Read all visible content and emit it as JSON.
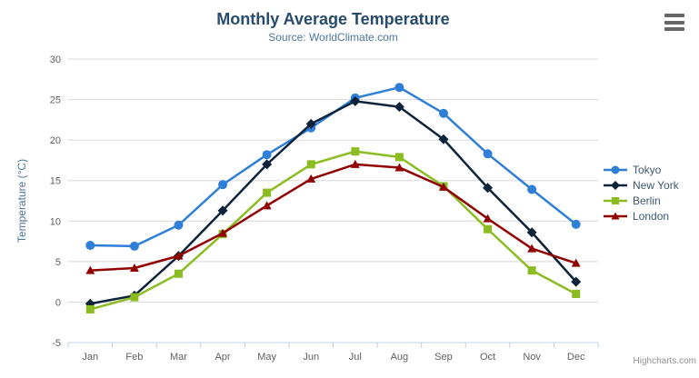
{
  "chart_data": {
    "type": "line",
    "title": "Monthly Average Temperature",
    "subtitle": "Source: WorldClimate.com",
    "xlabel": "",
    "ylabel": "Temperature (°C)",
    "ylim": [
      -5,
      30
    ],
    "ytick_step": 5,
    "grid": true,
    "legend_position": "right",
    "credits": "Highcharts.com",
    "categories": [
      "Jan",
      "Feb",
      "Mar",
      "Apr",
      "May",
      "Jun",
      "Jul",
      "Aug",
      "Sep",
      "Oct",
      "Nov",
      "Dec"
    ],
    "series": [
      {
        "name": "Tokyo",
        "color": "#2f7ed8",
        "marker": "circle",
        "values": [
          7.0,
          6.9,
          9.5,
          14.5,
          18.2,
          21.5,
          25.2,
          26.5,
          23.3,
          18.3,
          13.9,
          9.6
        ]
      },
      {
        "name": "New York",
        "color": "#0d233a",
        "marker": "diamond",
        "values": [
          -0.2,
          0.8,
          5.7,
          11.3,
          17.0,
          22.0,
          24.8,
          24.1,
          20.1,
          14.1,
          8.6,
          2.5
        ]
      },
      {
        "name": "Berlin",
        "color": "#8bbc21",
        "marker": "square",
        "values": [
          -0.9,
          0.6,
          3.5,
          8.4,
          13.5,
          17.0,
          18.6,
          17.9,
          14.3,
          9.0,
          3.9,
          1.0
        ]
      },
      {
        "name": "London",
        "color": "#910000",
        "marker": "triangle",
        "values": [
          3.9,
          4.2,
          5.7,
          8.5,
          11.9,
          15.2,
          17.0,
          16.6,
          14.2,
          10.3,
          6.6,
          4.8
        ]
      }
    ],
    "style": {
      "title_color": "#274b6d",
      "subtitle_color": "#4d759e",
      "axis_title_color": "#4d759e",
      "axis_label_color": "#606060",
      "grid_color": "#d8d8d8",
      "axis_line_color": "#c0d0e0",
      "legend_text_color": "#3e576f",
      "credits_color": "#909090"
    }
  },
  "icons": {
    "context_menu": "hamburger-menu-icon"
  }
}
